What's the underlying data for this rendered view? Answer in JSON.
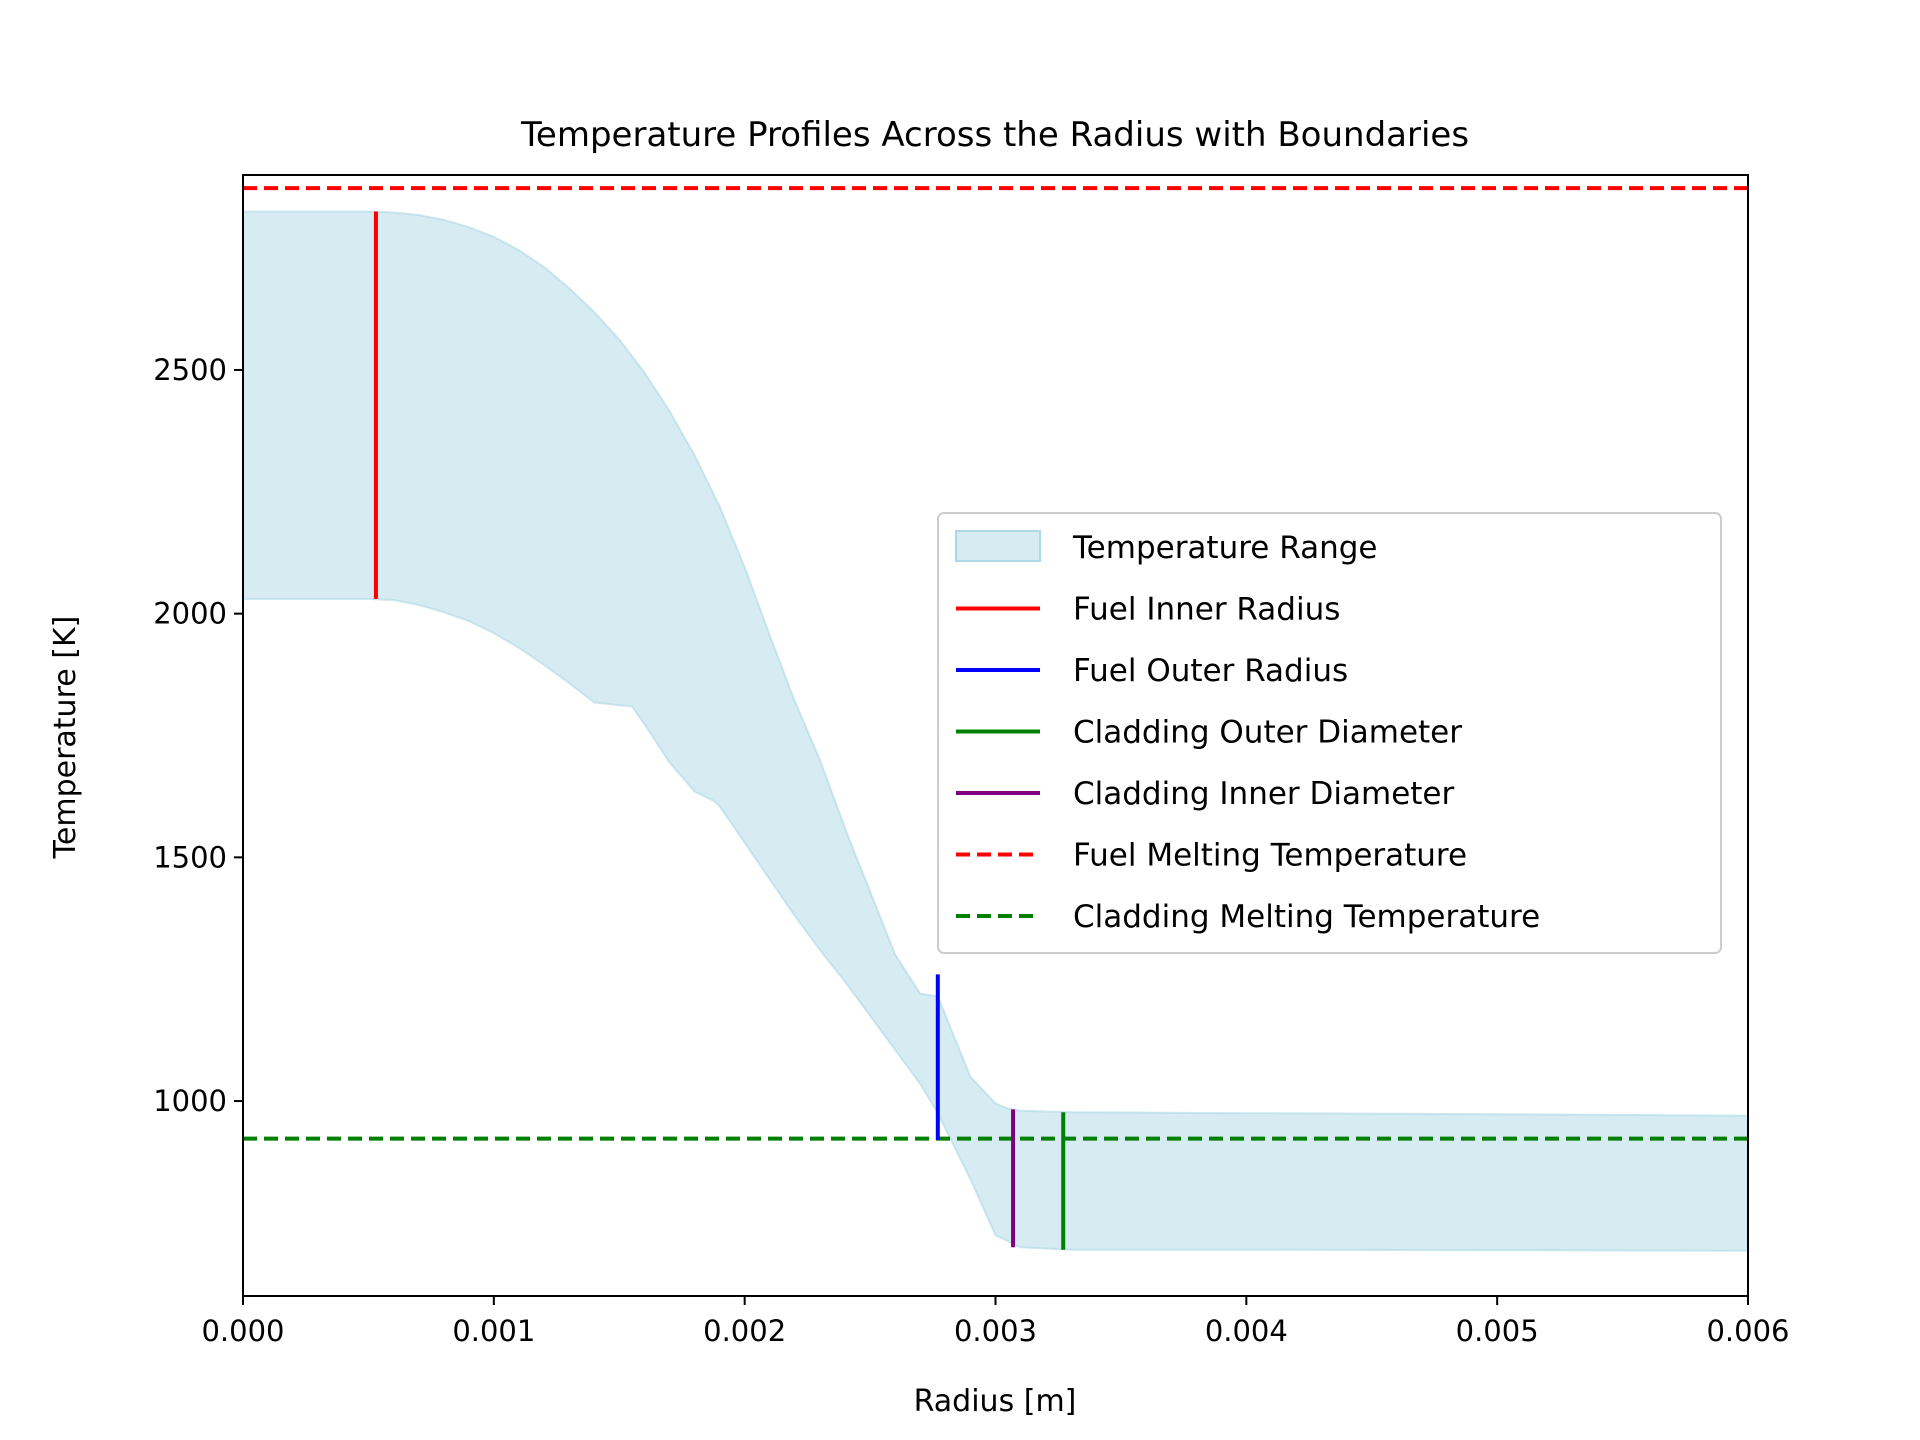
{
  "chart_data": {
    "type": "area",
    "title": "Temperature Profiles Across the Radius with Boundaries",
    "xlabel": "Radius [m]",
    "ylabel": "Temperature [K]",
    "xlim": [
      0,
      0.006
    ],
    "ylim": [
      600,
      2900
    ],
    "x_ticks": [
      0,
      0.001,
      0.002,
      0.003,
      0.004,
      0.005,
      0.006
    ],
    "x_tick_labels": [
      "0.000",
      "0.001",
      "0.002",
      "0.003",
      "0.004",
      "0.005",
      "0.006"
    ],
    "y_ticks": [
      1000,
      1500,
      2000,
      2500
    ],
    "y_tick_labels": [
      "1000",
      "1500",
      "2000",
      "2500"
    ],
    "grid": false,
    "legend_position": "center-right",
    "temperature_range": {
      "name": "Temperature Range",
      "color": "#add8e6",
      "upper": {
        "x": [
          0,
          0.0003,
          0.0005,
          0.0006,
          0.0007,
          0.0008,
          0.0009,
          0.001,
          0.0011,
          0.0012,
          0.0013,
          0.0014,
          0.0015,
          0.0016,
          0.0017,
          0.0018,
          0.0019,
          0.002,
          0.0021,
          0.0022,
          0.0023,
          0.0024,
          0.00243,
          0.0025,
          0.0026,
          0.0027,
          0.00277,
          0.0029,
          0.003,
          0.00305,
          0.0031,
          0.0033,
          0.004,
          0.005,
          0.006
        ],
        "y": [
          2825,
          2825,
          2825,
          2823,
          2818,
          2808,
          2793,
          2773,
          2746,
          2711,
          2668,
          2619,
          2562,
          2495,
          2416,
          2325,
          2220,
          2095,
          1955,
          1820,
          1700,
          1560,
          1520,
          1430,
          1300,
          1220,
          1215,
          1050,
          995,
          985,
          980,
          977,
          975,
          973,
          970
        ]
      },
      "lower": {
        "x": [
          0,
          0.0003,
          0.0005,
          0.0006,
          0.0007,
          0.0008,
          0.0009,
          0.001,
          0.0011,
          0.0012,
          0.0013,
          0.0014,
          0.0015,
          0.00155,
          0.0016,
          0.0017,
          0.0018,
          0.00188,
          0.0019,
          0.002,
          0.0021,
          0.0022,
          0.0023,
          0.0024,
          0.0025,
          0.0026,
          0.0027,
          0.00277,
          0.0029,
          0.003,
          0.0031,
          0.0033,
          0.004,
          0.005,
          0.006
        ],
        "y": [
          2030,
          2030,
          2030,
          2028,
          2018,
          2003,
          1985,
          1960,
          1930,
          1895,
          1858,
          1818,
          1812,
          1810,
          1774,
          1695,
          1635,
          1615,
          1605,
          1530,
          1455,
          1380,
          1310,
          1245,
          1175,
          1105,
          1035,
          975,
          840,
          725,
          700,
          695,
          695,
          694,
          693
        ]
      }
    },
    "boundaries": [
      {
        "name": "Fuel Inner Radius",
        "color": "#ff0000",
        "style": "solid",
        "x": 0.00053,
        "y": [
          2030,
          2825
        ]
      },
      {
        "name": "Fuel Outer Radius",
        "color": "#0000ff",
        "style": "solid",
        "x": 0.00277,
        "y": [
          920,
          1260
        ]
      },
      {
        "name": "Cladding Outer Diameter",
        "color": "#008000",
        "style": "solid",
        "x": 0.00327,
        "y": [
          695,
          977
        ]
      },
      {
        "name": "Cladding Inner Diameter",
        "color": "#800080",
        "style": "solid",
        "x": 0.00307,
        "y": [
          700,
          983
        ]
      }
    ],
    "melting_lines": [
      {
        "name": "Fuel Melting Temperature",
        "color": "#ff0000",
        "style": "dashed",
        "y": 2873
      },
      {
        "name": "Cladding Melting Temperature",
        "color": "#008000",
        "style": "dashed",
        "y": 923
      }
    ],
    "legend": [
      "Temperature Range",
      "Fuel Inner Radius",
      "Fuel Outer Radius",
      "Cladding Outer Diameter",
      "Cladding Inner Diameter",
      "Fuel Melting Temperature",
      "Cladding Melting Temperature"
    ]
  }
}
